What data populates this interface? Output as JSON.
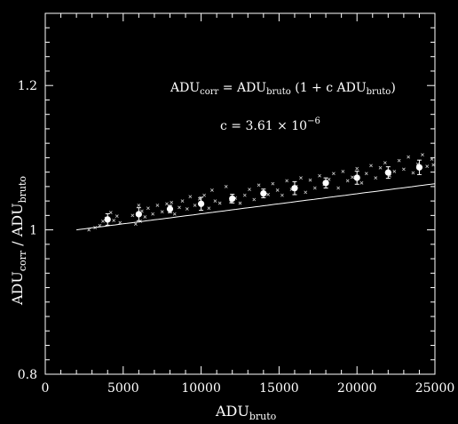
{
  "chart_data": {
    "type": "scatter",
    "xlabel": {
      "main": "ADU",
      "sub": "bruto"
    },
    "ylabel": {
      "main1": "ADU",
      "sub1": "corr",
      "sep": " / ",
      "main2": "ADU",
      "sub2": "bruto"
    },
    "xlim": [
      0,
      25000
    ],
    "ylim": [
      0.8,
      1.3
    ],
    "xticks": [
      0,
      5000,
      10000,
      15000,
      20000,
      25000
    ],
    "xtick_labels": [
      "0",
      "5000",
      "10000",
      "15000",
      "20000",
      "25000"
    ],
    "yticks": [
      0.8,
      1,
      1.2
    ],
    "ytick_labels": [
      "0.8",
      "1",
      "1.2"
    ],
    "annotations": {
      "formula": {
        "lhs": "ADU",
        "lhs_sub": "corr",
        "eq": " = ",
        "m1": "ADU",
        "m1_sub": "bruto",
        "mid": " (1 + c ADU",
        "mid_sub": "bruto",
        "end": ")"
      },
      "coef": {
        "text": "c = 3.61 × 10",
        "exp": "−6"
      }
    },
    "fit": {
      "c": 3.61e-06,
      "x_range": [
        2000,
        25000
      ]
    },
    "binned": [
      {
        "x": 4000,
        "y": 1.0144,
        "err": 0.008
      },
      {
        "x": 6000,
        "y": 1.0217,
        "err": 0.009
      },
      {
        "x": 8000,
        "y": 1.0289,
        "err": 0.005
      },
      {
        "x": 10000,
        "y": 1.0361,
        "err": 0.009
      },
      {
        "x": 12000,
        "y": 1.0433,
        "err": 0.006
      },
      {
        "x": 14000,
        "y": 1.0505,
        "err": 0.006
      },
      {
        "x": 16000,
        "y": 1.0578,
        "err": 0.009
      },
      {
        "x": 18000,
        "y": 1.065,
        "err": 0.007
      },
      {
        "x": 20000,
        "y": 1.0722,
        "err": 0.009
      },
      {
        "x": 22000,
        "y": 1.0794,
        "err": 0.008
      },
      {
        "x": 24000,
        "y": 1.0866,
        "err": 0.01
      }
    ],
    "points": [
      [
        2800,
        1.0
      ],
      [
        3200,
        1.003
      ],
      [
        3500,
        1.006
      ],
      [
        3700,
        1.012
      ],
      [
        3900,
        1.016
      ],
      [
        4200,
        1.024
      ],
      [
        4400,
        1.013
      ],
      [
        4600,
        1.019
      ],
      [
        4800,
        1.01
      ],
      [
        5600,
        1.02
      ],
      [
        5800,
        1.008
      ],
      [
        6000,
        1.034
      ],
      [
        6100,
        1.012
      ],
      [
        6200,
        1.026
      ],
      [
        6400,
        1.018
      ],
      [
        6600,
        1.03
      ],
      [
        6900,
        1.022
      ],
      [
        7200,
        1.034
      ],
      [
        7500,
        1.025
      ],
      [
        7800,
        1.036
      ],
      [
        8100,
        1.038
      ],
      [
        8300,
        1.022
      ],
      [
        8600,
        1.031
      ],
      [
        8800,
        1.04
      ],
      [
        9100,
        1.029
      ],
      [
        9300,
        1.046
      ],
      [
        9600,
        1.034
      ],
      [
        9900,
        1.043
      ],
      [
        10200,
        1.048
      ],
      [
        10500,
        1.03
      ],
      [
        10700,
        1.055
      ],
      [
        10900,
        1.04
      ],
      [
        11200,
        1.037
      ],
      [
        11600,
        1.06
      ],
      [
        11900,
        1.039
      ],
      [
        12200,
        1.044
      ],
      [
        12500,
        1.037
      ],
      [
        12800,
        1.048
      ],
      [
        13100,
        1.056
      ],
      [
        13400,
        1.042
      ],
      [
        13700,
        1.062
      ],
      [
        14000,
        1.05
      ],
      [
        14300,
        1.049
      ],
      [
        14600,
        1.064
      ],
      [
        14900,
        1.055
      ],
      [
        15200,
        1.048
      ],
      [
        15500,
        1.068
      ],
      [
        15800,
        1.056
      ],
      [
        16100,
        1.06
      ],
      [
        16400,
        1.072
      ],
      [
        16700,
        1.052
      ],
      [
        17000,
        1.069
      ],
      [
        17300,
        1.058
      ],
      [
        17600,
        1.075
      ],
      [
        17900,
        1.063
      ],
      [
        18200,
        1.07
      ],
      [
        18500,
        1.078
      ],
      [
        18800,
        1.058
      ],
      [
        19100,
        1.081
      ],
      [
        19400,
        1.068
      ],
      [
        19700,
        1.073
      ],
      [
        20000,
        1.085
      ],
      [
        20300,
        1.065
      ],
      [
        20600,
        1.078
      ],
      [
        20900,
        1.089
      ],
      [
        21200,
        1.072
      ],
      [
        21500,
        1.086
      ],
      [
        21800,
        1.093
      ],
      [
        22100,
        1.075
      ],
      [
        22400,
        1.081
      ],
      [
        22700,
        1.096
      ],
      [
        23000,
        1.084
      ],
      [
        23300,
        1.101
      ],
      [
        23600,
        1.079
      ],
      [
        23900,
        1.091
      ],
      [
        24200,
        1.104
      ],
      [
        24500,
        1.088
      ],
      [
        24800,
        1.098
      ],
      [
        24900,
        1.09
      ]
    ],
    "colors": {
      "background": "#000000",
      "foreground": "#ffffff",
      "points": "#cccccc"
    }
  }
}
